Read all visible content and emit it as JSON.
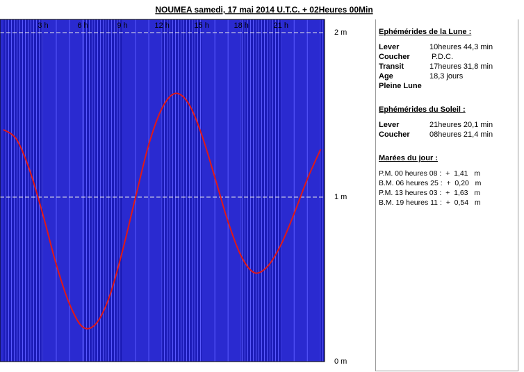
{
  "chart_data": {
    "type": "line",
    "title": "NOUMEA samedi, 17 mai 2014 U.T.C. + 02Heures 00Min",
    "x": [
      0,
      1,
      2,
      3,
      4,
      5,
      6,
      7,
      8,
      9,
      10,
      11,
      12,
      13,
      14,
      15,
      16,
      17,
      18,
      19,
      20,
      21,
      22,
      23,
      24
    ],
    "series": [
      {
        "color": "#e01818",
        "values": [
          1.41,
          1.35,
          1.16,
          0.89,
          0.59,
          0.35,
          0.21,
          0.23,
          0.39,
          0.67,
          1.0,
          1.32,
          1.54,
          1.63,
          1.57,
          1.38,
          1.12,
          0.85,
          0.64,
          0.54,
          0.58,
          0.71,
          0.9,
          1.11,
          1.29
        ]
      }
    ],
    "xlim": [
      -0.26,
      24.3
    ],
    "ylim": [
      0,
      2.08
    ],
    "xticks": [
      {
        "value": 3,
        "label": "3  h"
      },
      {
        "value": 6,
        "label": "6  h"
      },
      {
        "value": 9,
        "label": "9  h"
      },
      {
        "value": 12,
        "label": "12  h"
      },
      {
        "value": 15,
        "label": "15  h"
      },
      {
        "value": 18,
        "label": "18  h"
      },
      {
        "value": 21,
        "label": "21  h"
      }
    ],
    "yticks": [
      {
        "value": 0,
        "label": "0  m"
      },
      {
        "value": 1,
        "label": "1  m"
      },
      {
        "value": 2,
        "label": "2  m"
      }
    ],
    "grid": true
  },
  "panel": {
    "moon": {
      "heading": "Ephémérides de la Lune :",
      "rows": [
        [
          "Lever",
          "10heures 44,3 min"
        ],
        [
          "Coucher",
          " P.D.C."
        ],
        [
          "Transit",
          "17heures 31,8 min"
        ],
        [
          "Age",
          "18,3 jours"
        ],
        [
          "Pleine Lune",
          ""
        ]
      ]
    },
    "sun": {
      "heading": "Ephémérides du Soleil :",
      "rows": [
        [
          "Lever",
          "21heures 20,1 min"
        ],
        [
          "Coucher",
          "08heures 21,4 min"
        ]
      ]
    },
    "tides": {
      "heading": "Marées du jour :",
      "lines": [
        "P.M. 00 heures 08 :  +  1,41   m",
        "B.M. 06 heures 25 :  +  0,20   m",
        "P.M. 13 heures 03 :  +  1,63   m",
        "B.M. 19 heures 11 :  +  0,54   m"
      ]
    }
  }
}
